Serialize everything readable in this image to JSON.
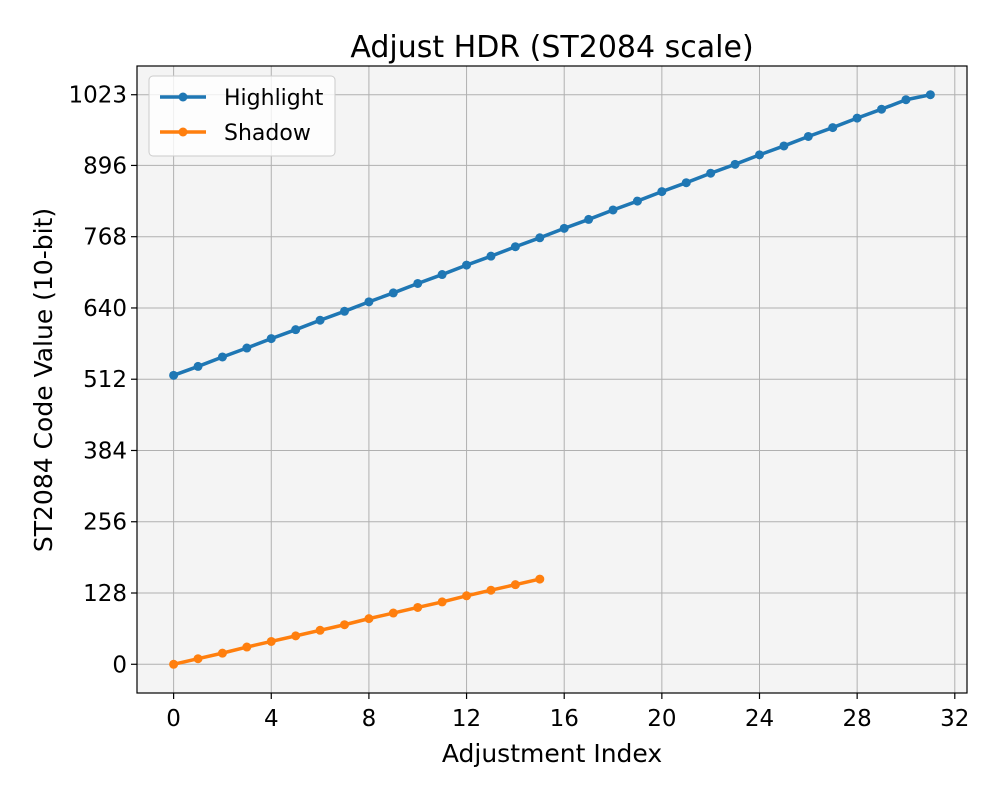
{
  "chart_data": {
    "type": "line",
    "title": "Adjust HDR (ST2084 scale)",
    "xlabel": "Adjustment Index",
    "ylabel": "ST2084 Code Value (10-bit)",
    "xlim": [
      -1.5,
      32.5
    ],
    "ylim": [
      -51.6,
      1074.6
    ],
    "xticks": [
      0,
      4,
      8,
      12,
      16,
      20,
      24,
      28,
      32
    ],
    "yticks": [
      0,
      128,
      256,
      384,
      512,
      640,
      768,
      896,
      1023
    ],
    "grid": true,
    "legend_position": "top-left",
    "series": [
      {
        "name": "Highlight",
        "color": "#1f77b4",
        "x": [
          0,
          1,
          2,
          3,
          4,
          5,
          6,
          7,
          8,
          9,
          10,
          11,
          12,
          13,
          14,
          15,
          16,
          17,
          18,
          19,
          20,
          21,
          22,
          23,
          24,
          25,
          26,
          27,
          28,
          29,
          30,
          31
        ],
        "y": [
          519,
          535,
          552,
          568,
          585,
          601,
          618,
          634,
          651,
          667,
          684,
          700,
          717,
          733,
          750,
          766,
          783,
          799,
          816,
          832,
          849,
          865,
          882,
          898,
          915,
          931,
          948,
          964,
          981,
          997,
          1014,
          1023
        ]
      },
      {
        "name": "Shadow",
        "color": "#ff7f0e",
        "x": [
          0,
          1,
          2,
          3,
          4,
          5,
          6,
          7,
          8,
          9,
          10,
          11,
          12,
          13,
          14,
          15
        ],
        "y": [
          0,
          10,
          20,
          31,
          41,
          51,
          61,
          71,
          82,
          92,
          102,
          112,
          123,
          133,
          143,
          153
        ]
      }
    ]
  }
}
